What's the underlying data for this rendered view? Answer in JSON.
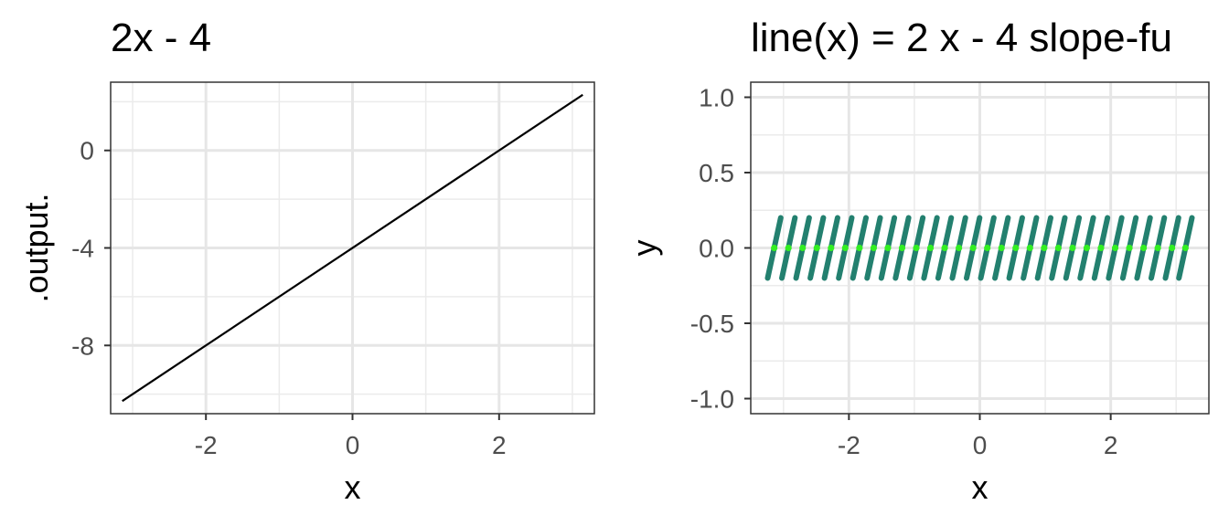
{
  "chart_data": [
    {
      "type": "line",
      "title": "2x - 4",
      "xlabel": "x",
      "ylabel": ".output.",
      "xlim": [
        -3.3,
        3.3
      ],
      "ylim": [
        -10.8,
        2.8
      ],
      "x_ticks": [
        -2,
        0,
        2
      ],
      "y_ticks": [
        0,
        -4,
        -8
      ],
      "grid": true,
      "line_color": "#000000",
      "series": [
        {
          "x": [
            -3.1416,
            3.1416
          ],
          "y": [
            -10.283,
            2.283
          ]
        }
      ]
    },
    {
      "type": "scatter",
      "title": "line(x) = 2 x - 4 slope-fu",
      "xlabel": "x",
      "ylabel": "y",
      "xlim": [
        -3.5,
        3.5
      ],
      "ylim": [
        -1.1,
        1.1
      ],
      "x_ticks": [
        -2,
        0,
        2
      ],
      "y_ticks": [
        1.0,
        0.5,
        0.0,
        -0.5,
        -1.0
      ],
      "y_tick_labels": [
        "1.0",
        "0.5",
        "0.0",
        "-0.5",
        "-1.0"
      ],
      "grid": true,
      "segment_color": "#23806f",
      "point_color": "#33ee22",
      "slope": 2,
      "segment_half_dx": 0.1,
      "points": {
        "x": [
          -3.1416,
          -2.9245,
          -2.7075,
          -2.4904,
          -2.2733,
          -2.0563,
          -1.8392,
          -1.6221,
          -1.405,
          -1.188,
          -0.9709,
          -0.7538,
          -0.5368,
          -0.3197,
          -0.1026,
          0.1144,
          0.3315,
          0.5486,
          0.7657,
          0.9827,
          1.1998,
          1.4169,
          1.6339,
          1.851,
          2.0681,
          2.2851,
          2.5022,
          2.7193,
          2.9363,
          3.1416
        ],
        "y": 0
      }
    }
  ]
}
